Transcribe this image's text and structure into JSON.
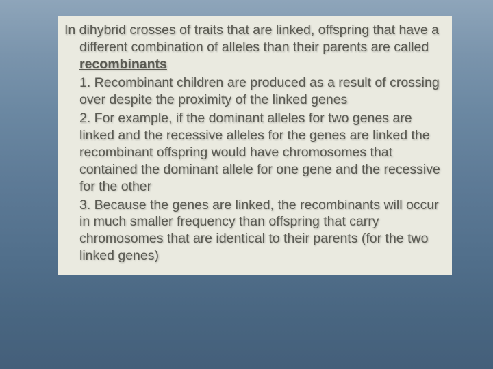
{
  "slide": {
    "background_gradient_top": "#8ea5ba",
    "background_gradient_bottom": "#445f7a",
    "content_background": "#eaeae0",
    "text_color": "#5a5a52",
    "font_family": "Verdana",
    "font_size_pt": 15,
    "intro_prefix": "In dihybrid crosses of traits that are linked, offspring that have a different combination of alleles than their parents are called ",
    "intro_key_term": "recombinants",
    "point1": "1. Recombinant children are produced as a result of crossing over despite the proximity of the linked genes",
    "point2": "2. For example, if the dominant alleles for two genes are linked and the recessive alleles for the genes are linked the recombinant offspring would have chromosomes that contained the dominant allele for one gene and the recessive for the other",
    "point3": "3. Because the genes are linked, the recombinants will occur in much smaller frequency than offspring that carry chromosomes that are identical to their parents (for the two linked genes)"
  }
}
